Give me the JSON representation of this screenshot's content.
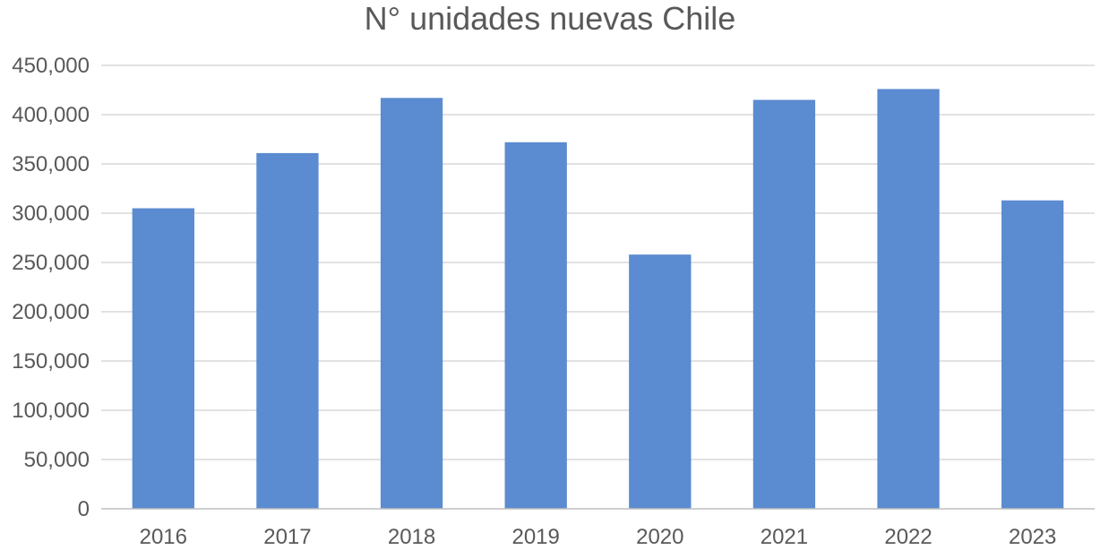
{
  "chart_data": {
    "type": "bar",
    "title": "N° unidades nuevas Chile",
    "categories": [
      "2016",
      "2017",
      "2018",
      "2019",
      "2020",
      "2021",
      "2022",
      "2023"
    ],
    "series": [
      {
        "values": [
          305000,
          361000,
          417000,
          372000,
          258000,
          415000,
          426000,
          313000
        ]
      }
    ],
    "ylim": [
      0,
      450000
    ],
    "yticks": [
      0,
      50000,
      100000,
      150000,
      200000,
      250000,
      300000,
      350000,
      400000,
      450000
    ],
    "ytick_labels": [
      "0",
      "50,000",
      "100,000",
      "150,000",
      "200,000",
      "250,000",
      "300,000",
      "350,000",
      "400,000",
      "450,000"
    ],
    "grid": true,
    "legend": "none",
    "bar_color": "#5b8bd0"
  }
}
